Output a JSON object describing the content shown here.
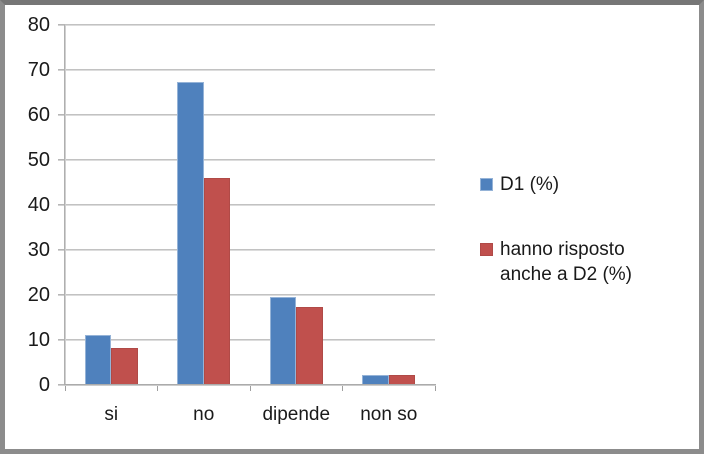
{
  "chart_data": {
    "type": "bar",
    "title": "",
    "xlabel": "",
    "ylabel": "",
    "categories": [
      "si",
      "no",
      "dipende",
      "non so"
    ],
    "series": [
      {
        "name": "D1 (%)",
        "color": "#4F81BD",
        "edge_color": "#95B3D7",
        "values": [
          11.2,
          67.4,
          19.5,
          2.3
        ]
      },
      {
        "name": "hanno risposto anche a D2 (%)",
        "color": "#C0504D",
        "edge_color": "#B04A47",
        "values": [
          8.3,
          46.0,
          17.3,
          2.3
        ]
      }
    ],
    "ylim": [
      0,
      80
    ],
    "ytick_step": 10,
    "yticks": [
      0,
      10,
      20,
      30,
      40,
      50,
      60,
      70,
      80
    ],
    "grid": true,
    "legend_position": "right"
  },
  "frame": {
    "border_color": "#8c8c8c",
    "background": "#ffffff"
  },
  "styles": {
    "gridline_color": "#bdbdbd",
    "axis_color": "#9f9f9f",
    "text_color": "#1a1a1a"
  }
}
